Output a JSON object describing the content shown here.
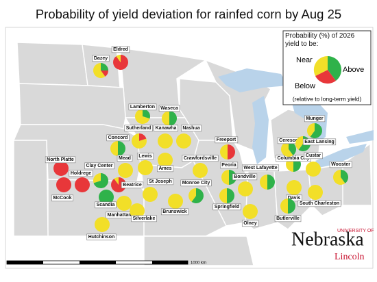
{
  "title": "Probability of yield deviation for rainfed corn by Aug 25",
  "legend": {
    "heading": "Probability (%) of 2026 yield to be:",
    "near": "Near",
    "above": "Above",
    "below": "Below",
    "note": "(relative to long-term yield)"
  },
  "scale_label": "1000 km",
  "logo": {
    "top": "UNIVERSITY OF",
    "name": "Nebraska",
    "city": "Lincoln"
  },
  "sites": [
    {
      "label": "Dazey",
      "below": 15,
      "near": 60,
      "above": 25
    },
    {
      "label": "Eldred",
      "below": 90,
      "near": 10,
      "above": 0
    },
    {
      "label": "Lamberton",
      "below": 0,
      "near": 70,
      "above": 30
    },
    {
      "label": "Waseca",
      "below": 0,
      "near": 50,
      "above": 50
    },
    {
      "label": "Sutherland",
      "below": 20,
      "near": 80,
      "above": 0
    },
    {
      "label": "Kanawha",
      "below": 0,
      "near": 100,
      "above": 0
    },
    {
      "label": "Nashua",
      "below": 0,
      "near": 100,
      "above": 0
    },
    {
      "label": "Concord",
      "below": 0,
      "near": 50,
      "above": 50
    },
    {
      "label": "Freeport",
      "below": 50,
      "near": 50,
      "above": 0
    },
    {
      "label": "North Platte",
      "below": 100,
      "near": 0,
      "above": 0
    },
    {
      "label": "Mead",
      "below": 0,
      "near": 100,
      "above": 0
    },
    {
      "label": "Lewis",
      "below": 0,
      "near": 100,
      "above": 0
    },
    {
      "label": "Ames",
      "below": 0,
      "near": 100,
      "above": 0
    },
    {
      "label": "Crawfordsville",
      "below": 0,
      "near": 100,
      "above": 0
    },
    {
      "label": "Clay Center",
      "below": 0,
      "near": 30,
      "above": 70
    },
    {
      "label": "Holdrege",
      "below": 100,
      "near": 0,
      "above": 0
    },
    {
      "label": "McCook",
      "below": 100,
      "near": 0,
      "above": 0
    },
    {
      "label": "Beatrice",
      "below": 90,
      "near": 10,
      "above": 0
    },
    {
      "label": "St Joseph",
      "below": 0,
      "near": 100,
      "above": 0
    },
    {
      "label": "Monroe City",
      "below": 0,
      "near": 40,
      "above": 60
    },
    {
      "label": "Peoria",
      "below": 0,
      "near": 50,
      "above": 50
    },
    {
      "label": "Bondville",
      "below": 0,
      "near": 100,
      "above": 0
    },
    {
      "label": "West Lafayette",
      "below": 0,
      "near": 50,
      "above": 50
    },
    {
      "label": "Springfield",
      "below": 0,
      "near": 50,
      "above": 50
    },
    {
      "label": "Scandia",
      "below": 0,
      "near": 0,
      "above": 100
    },
    {
      "label": "Manhattan",
      "below": 0,
      "near": 100,
      "above": 0
    },
    {
      "label": "Silverlake",
      "below": 0,
      "near": 100,
      "above": 0
    },
    {
      "label": "Brunswick",
      "below": 0,
      "near": 100,
      "above": 0
    },
    {
      "label": "Olney",
      "below": 0,
      "near": 100,
      "above": 0
    },
    {
      "label": "Hutchinson",
      "below": 0,
      "near": 100,
      "above": 0
    },
    {
      "label": "Columbia City",
      "below": 0,
      "near": 50,
      "above": 50
    },
    {
      "label": "Ceresco",
      "below": 0,
      "near": 60,
      "above": 40
    },
    {
      "label": "Munger",
      "below": 0,
      "near": 40,
      "above": 60
    },
    {
      "label": "East Lansing",
      "below": 0,
      "near": 40,
      "above": 60
    },
    {
      "label": "Custar",
      "below": 0,
      "near": 100,
      "above": 0
    },
    {
      "label": "Wooster",
      "below": 0,
      "near": 60,
      "above": 40
    },
    {
      "label": "Davis",
      "below": 0,
      "near": 100,
      "above": 0
    },
    {
      "label": "Butlerville",
      "below": 0,
      "near": 50,
      "above": 50
    },
    {
      "label": "South Charleston",
      "below": 0,
      "near": 100,
      "above": 0
    }
  ]
}
